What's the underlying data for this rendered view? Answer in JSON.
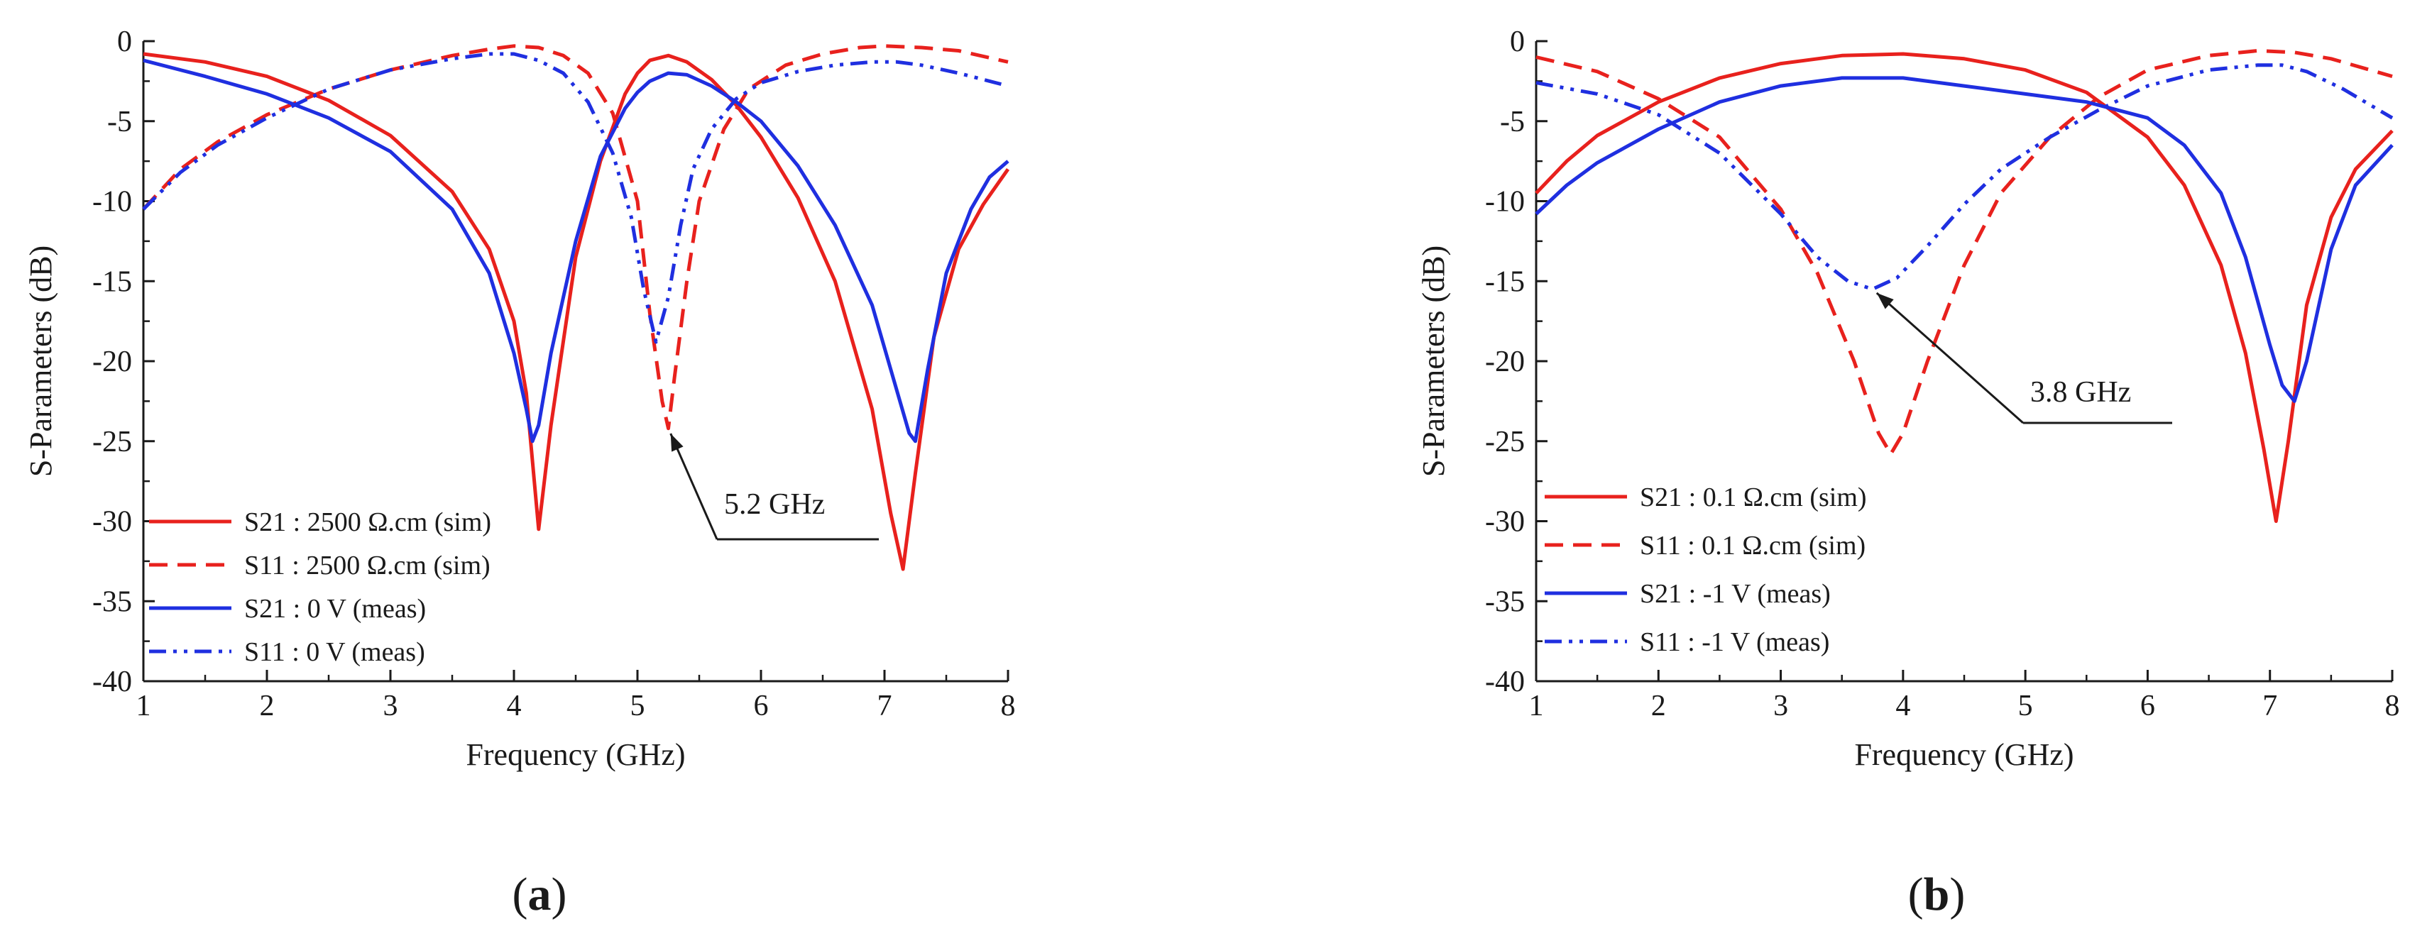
{
  "chart_data": [
    {
      "type": "line",
      "panel_label": "(a)",
      "xlabel": "Frequency (GHz)",
      "ylabel": "S-Parameters (dB)",
      "xlim": [
        1,
        8
      ],
      "ylim": [
        -40,
        0
      ],
      "xticks": [
        1,
        2,
        3,
        4,
        5,
        6,
        7,
        8
      ],
      "yticks": [
        0,
        -5,
        -10,
        -15,
        -20,
        -25,
        -30,
        -35,
        -40
      ],
      "ytick_labels": [
        "0",
        "-5",
        "-10",
        "-15",
        "-20",
        "-25",
        "-30",
        "-35",
        "-40"
      ],
      "legend_position": "bottom-left",
      "series": [
        {
          "name": "S21 : 2500 Ω.cm (sim)",
          "color": "#e8211d",
          "style": "solid",
          "x": [
            1,
            1.5,
            2,
            2.5,
            3,
            3.5,
            3.8,
            4,
            4.1,
            4.2,
            4.3,
            4.5,
            4.7,
            4.9,
            5,
            5.1,
            5.25,
            5.4,
            5.6,
            5.8,
            6,
            6.3,
            6.6,
            6.9,
            7.05,
            7.15,
            7.25,
            7.4,
            7.6,
            7.8,
            8
          ],
          "y": [
            -0.8,
            -1.3,
            -2.2,
            -3.7,
            -5.9,
            -9.4,
            -13.0,
            -17.5,
            -22.0,
            -30.5,
            -24.0,
            -13.5,
            -7.5,
            -3.3,
            -2.0,
            -1.2,
            -0.9,
            -1.3,
            -2.4,
            -4.0,
            -6.0,
            -9.8,
            -15.0,
            -23.0,
            -29.5,
            -33.0,
            -27.0,
            -18.5,
            -13.0,
            -10.2,
            -8.0
          ]
        },
        {
          "name": "S11 : 2500 Ω.cm (sim)",
          "color": "#e8211d",
          "style": "dashed",
          "x": [
            1,
            1.3,
            1.6,
            2,
            2.5,
            3,
            3.5,
            3.8,
            4,
            4.2,
            4.4,
            4.6,
            4.8,
            5,
            5.1,
            5.2,
            5.25,
            5.3,
            5.4,
            5.5,
            5.7,
            5.9,
            6.2,
            6.5,
            6.8,
            7,
            7.3,
            7.6,
            8
          ],
          "y": [
            -10.5,
            -8.0,
            -6.3,
            -4.6,
            -3.0,
            -1.8,
            -0.9,
            -0.5,
            -0.3,
            -0.4,
            -0.9,
            -2.0,
            -4.5,
            -10.0,
            -17.0,
            -22.5,
            -24.2,
            -21.0,
            -15.0,
            -10.0,
            -5.5,
            -3.0,
            -1.5,
            -0.8,
            -0.4,
            -0.3,
            -0.4,
            -0.6,
            -1.3
          ]
        },
        {
          "name": "S21 : 0 V (meas)",
          "color": "#1f2fe0",
          "style": "solid",
          "x": [
            1,
            1.5,
            2,
            2.5,
            3,
            3.5,
            3.8,
            4,
            4.1,
            4.15,
            4.2,
            4.3,
            4.5,
            4.7,
            4.9,
            5,
            5.1,
            5.25,
            5.4,
            5.6,
            5.8,
            6,
            6.3,
            6.6,
            6.9,
            7.05,
            7.2,
            7.25,
            7.35,
            7.5,
            7.7,
            7.85,
            8
          ],
          "y": [
            -1.2,
            -2.2,
            -3.3,
            -4.8,
            -6.9,
            -10.5,
            -14.5,
            -19.5,
            -23.0,
            -25.0,
            -24.0,
            -19.5,
            -12.5,
            -7.2,
            -4.2,
            -3.2,
            -2.5,
            -2.0,
            -2.1,
            -2.8,
            -3.8,
            -5.0,
            -7.8,
            -11.5,
            -16.5,
            -20.5,
            -24.5,
            -25.0,
            -20.5,
            -14.5,
            -10.5,
            -8.5,
            -7.5
          ]
        },
        {
          "name": "S11 : 0 V (meas)",
          "color": "#1f2fe0",
          "style": "dash-dot-dot",
          "x": [
            1,
            1.3,
            1.6,
            2,
            2.5,
            3,
            3.5,
            3.8,
            4,
            4.2,
            4.4,
            4.6,
            4.8,
            4.95,
            5.05,
            5.15,
            5.25,
            5.35,
            5.45,
            5.6,
            5.8,
            6,
            6.3,
            6.6,
            6.9,
            7.1,
            7.3,
            7.6,
            8
          ],
          "y": [
            -10.5,
            -8.2,
            -6.5,
            -4.8,
            -3.0,
            -1.8,
            -1.1,
            -0.8,
            -0.8,
            -1.2,
            -2.0,
            -3.8,
            -7.0,
            -11.0,
            -15.5,
            -18.8,
            -16.0,
            -11.5,
            -8.0,
            -5.5,
            -3.6,
            -2.6,
            -1.9,
            -1.5,
            -1.3,
            -1.3,
            -1.5,
            -2.0,
            -2.8
          ]
        }
      ],
      "annotation": {
        "text": "5.2 GHz",
        "x": 5.25,
        "y": -24.2
      }
    },
    {
      "type": "line",
      "panel_label": "(b)",
      "xlabel": "Frequency (GHz)",
      "ylabel": "S-Parameters (dB)",
      "xlim": [
        1,
        8
      ],
      "ylim": [
        -40,
        0
      ],
      "xticks": [
        1,
        2,
        3,
        4,
        5,
        6,
        7,
        8
      ],
      "yticks": [
        0,
        -5,
        -10,
        -15,
        -20,
        -25,
        -30,
        -35,
        -40
      ],
      "ytick_labels": [
        "0",
        "-5",
        "-10",
        "-15",
        "-20",
        "-25",
        "-30",
        "-35",
        "-40"
      ],
      "legend_position": "bottom-left",
      "series": [
        {
          "name": "S21 : 0.1 Ω.cm (sim)",
          "color": "#e8211d",
          "style": "solid",
          "x": [
            1,
            1.25,
            1.5,
            2,
            2.5,
            3,
            3.5,
            4,
            4.5,
            5,
            5.5,
            6,
            6.3,
            6.6,
            6.8,
            6.95,
            7.05,
            7.15,
            7.3,
            7.5,
            7.7,
            8
          ],
          "y": [
            -9.5,
            -7.5,
            -5.9,
            -3.8,
            -2.3,
            -1.4,
            -0.9,
            -0.8,
            -1.1,
            -1.8,
            -3.2,
            -6.0,
            -9.0,
            -14.0,
            -19.5,
            -25.5,
            -30.0,
            -25.0,
            -16.5,
            -11.0,
            -8.0,
            -5.6
          ]
        },
        {
          "name": "S11 : 0.1 Ω.cm (sim)",
          "color": "#e8211d",
          "style": "dashed",
          "x": [
            1,
            1.5,
            2,
            2.5,
            3,
            3.3,
            3.6,
            3.8,
            3.9,
            4,
            4.2,
            4.5,
            4.8,
            5.2,
            5.6,
            6,
            6.5,
            6.9,
            7.2,
            7.5,
            8
          ],
          "y": [
            -1.0,
            -1.9,
            -3.6,
            -6.0,
            -10.5,
            -14.5,
            -20.0,
            -24.5,
            -25.8,
            -24.5,
            -20.0,
            -14.0,
            -9.5,
            -6.0,
            -3.5,
            -1.8,
            -0.9,
            -0.6,
            -0.7,
            -1.1,
            -2.2
          ]
        },
        {
          "name": "S21 : -1 V (meas)",
          "color": "#1f2fe0",
          "style": "solid",
          "x": [
            1,
            1.25,
            1.5,
            2,
            2.5,
            3,
            3.5,
            4,
            4.5,
            5,
            5.5,
            6,
            6.3,
            6.6,
            6.8,
            7,
            7.1,
            7.2,
            7.3,
            7.5,
            7.7,
            8
          ],
          "y": [
            -10.8,
            -9.0,
            -7.6,
            -5.5,
            -3.8,
            -2.8,
            -2.3,
            -2.3,
            -2.8,
            -3.3,
            -3.8,
            -4.8,
            -6.5,
            -9.5,
            -13.5,
            -19.0,
            -21.5,
            -22.5,
            -20.0,
            -13.0,
            -9.0,
            -6.5
          ]
        },
        {
          "name": "S11 : -1 V (meas)",
          "color": "#1f2fe0",
          "style": "dash-dot-dot",
          "x": [
            1,
            1.5,
            2,
            2.5,
            3,
            3.3,
            3.55,
            3.75,
            3.95,
            4.2,
            4.5,
            4.8,
            5.2,
            5.6,
            6,
            6.5,
            6.9,
            7.1,
            7.3,
            7.6,
            8
          ],
          "y": [
            -2.6,
            -3.3,
            -4.6,
            -7.0,
            -10.8,
            -13.5,
            -15.0,
            -15.5,
            -14.8,
            -12.8,
            -10.2,
            -8.0,
            -6.0,
            -4.3,
            -2.8,
            -1.8,
            -1.5,
            -1.5,
            -1.9,
            -3.0,
            -4.8
          ]
        }
      ],
      "annotation": {
        "text": "3.8 GHz",
        "x": 3.75,
        "y": -15.5
      }
    }
  ]
}
